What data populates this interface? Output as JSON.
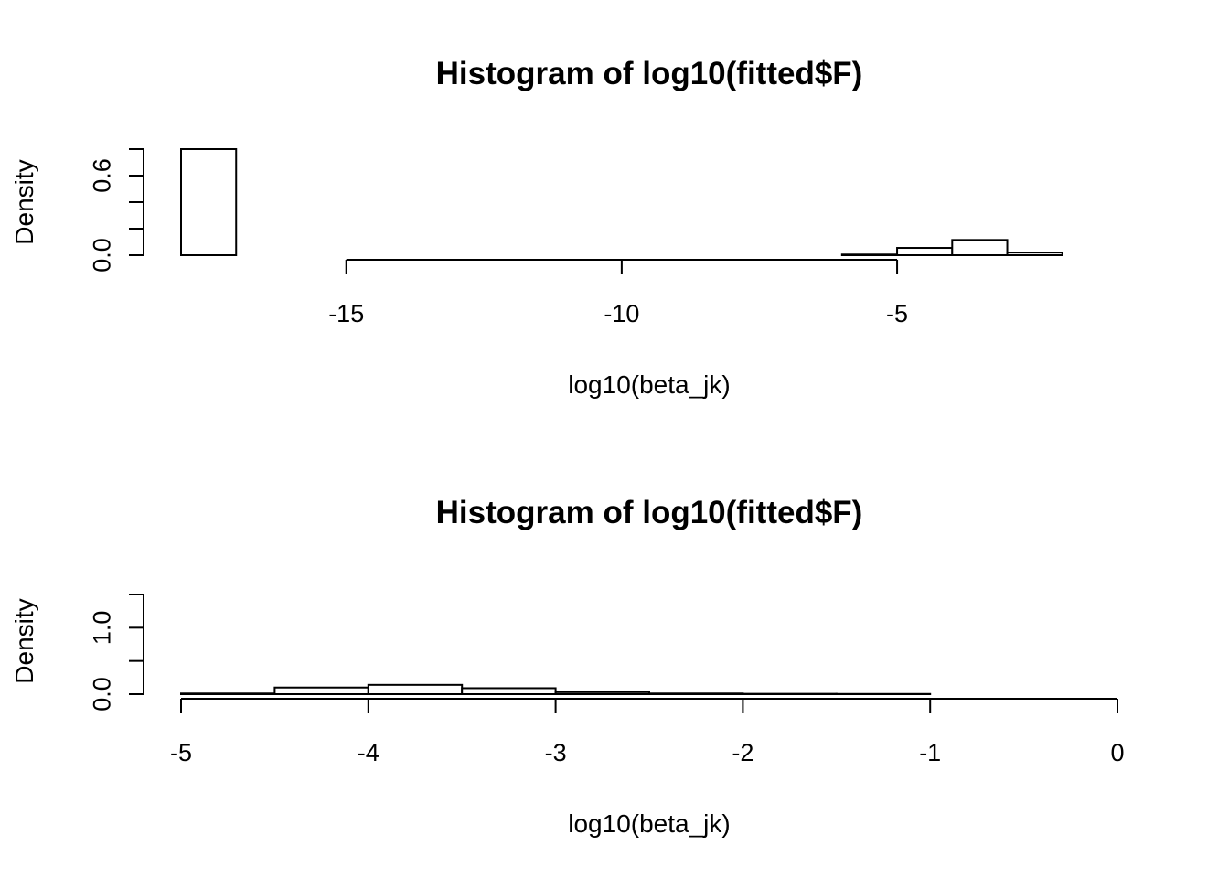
{
  "chart_data": [
    {
      "type": "bar",
      "title": "Histogram of log10(fitted$F)",
      "xlabel": "log10(beta_jk)",
      "ylabel": "Density",
      "x_ticks": [
        "-15",
        "-10",
        "-5"
      ],
      "y_ticks": [
        "0.0",
        "0.6"
      ],
      "xlim": [
        -18,
        -1
      ],
      "x_axis_range": [
        -15,
        -5
      ],
      "ylim": [
        0,
        0.8
      ],
      "y_axis_range": [
        0,
        0.8
      ],
      "bin_edges": [
        -18,
        -17,
        -16,
        -15,
        -14,
        -13,
        -12,
        -11,
        -10,
        -9,
        -8,
        -7,
        -6,
        -5,
        -4,
        -3,
        -2
      ],
      "values": [
        0.8,
        0,
        0,
        0,
        0,
        0,
        0,
        0,
        0,
        0,
        0,
        0,
        0.005,
        0.055,
        0.115,
        0.02
      ],
      "grid": false,
      "legend": "none"
    },
    {
      "type": "bar",
      "title": "Histogram of log10(fitted$F)",
      "xlabel": "log10(beta_jk)",
      "ylabel": "Density",
      "x_ticks": [
        "-5",
        "-4",
        "-3",
        "-2",
        "-1",
        "0"
      ],
      "y_ticks": [
        "0.0",
        "1.0"
      ],
      "xlim": [
        -5,
        0
      ],
      "x_axis_range": [
        -5,
        0
      ],
      "ylim": [
        0,
        1.5
      ],
      "y_axis_range": [
        0,
        1.5
      ],
      "bin_edges": [
        -5,
        -4.5,
        -4,
        -3.5,
        -3,
        -2.5,
        -2,
        -1.5,
        -1
      ],
      "values": [
        0.01,
        0.1,
        0.14,
        0.09,
        0.03,
        0.01,
        0.005,
        0.003
      ],
      "grid": false,
      "legend": "none"
    }
  ]
}
